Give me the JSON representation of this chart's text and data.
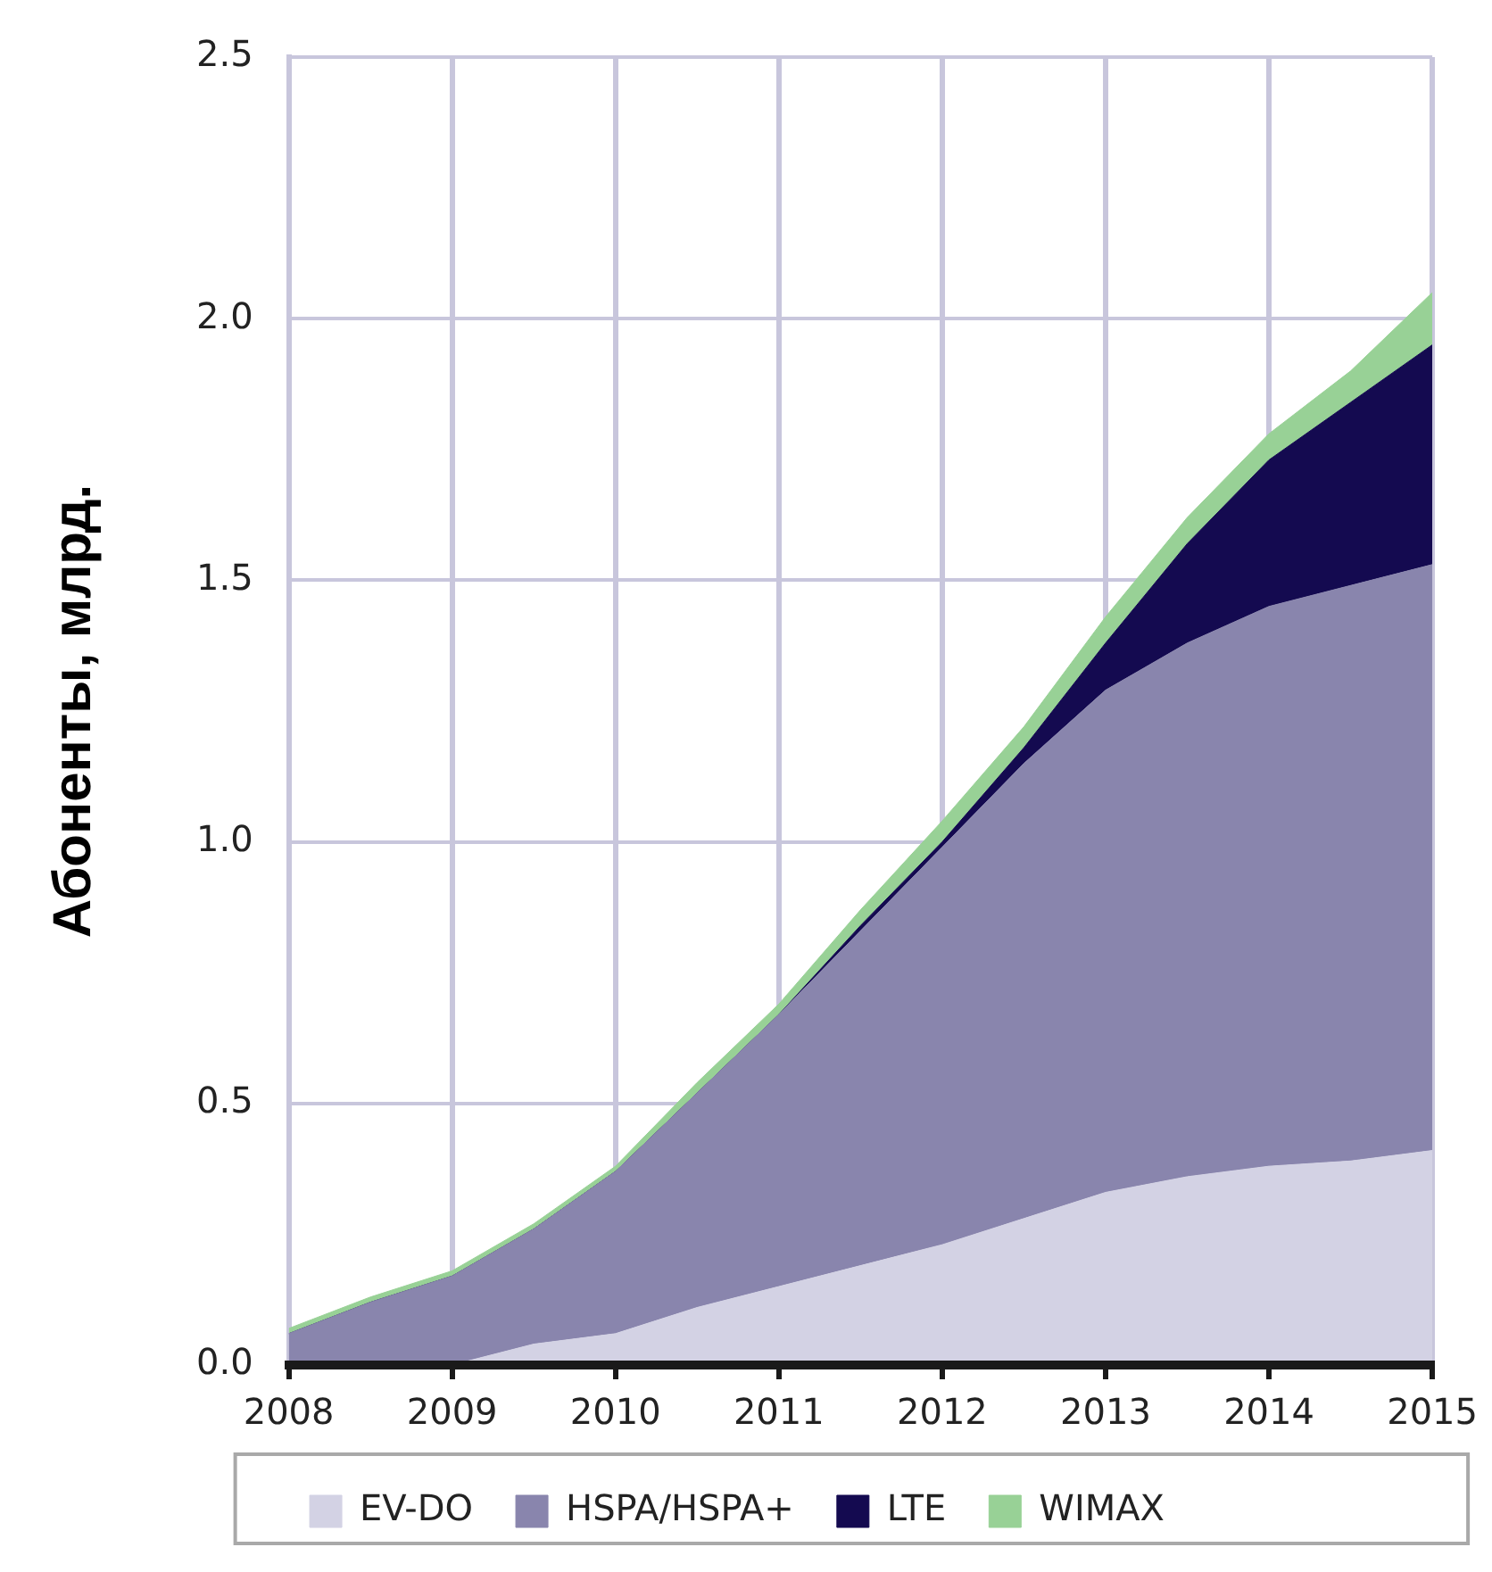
{
  "chart_data": {
    "type": "area",
    "stacked": true,
    "ylabel": "Абоненты, млрд.",
    "x": [
      2008,
      2008.5,
      2009,
      2009.5,
      2010,
      2010.5,
      2011,
      2011.5,
      2012,
      2012.5,
      2013,
      2013.5,
      2014,
      2014.5,
      2015
    ],
    "xlim": [
      2008,
      2015
    ],
    "xticks": [
      2008,
      2009,
      2010,
      2011,
      2012,
      2013,
      2014,
      2015
    ],
    "ylim": [
      0,
      2.5
    ],
    "yticks": [
      {
        "value": 0,
        "label": "0.0"
      },
      {
        "value": 0.5,
        "label": "0.5"
      },
      {
        "value": 1,
        "label": "1.0"
      },
      {
        "value": 1.5,
        "label": "1.5"
      },
      {
        "value": 2,
        "label": "2.0"
      },
      {
        "value": 2.5,
        "label": "2.5"
      }
    ],
    "grid": true,
    "legend": "bottom",
    "series": [
      {
        "name": "EV-DO",
        "color": "#d3d2e4",
        "values": [
          0,
          0,
          0,
          0.04,
          0.06,
          0.11,
          0.15,
          0.19,
          0.23,
          0.28,
          0.33,
          0.36,
          0.38,
          0.39,
          0.41
        ]
      },
      {
        "name": "HSPA/HSPA+",
        "color": "#8985ad",
        "values": [
          0.06,
          0.12,
          0.17,
          0.22,
          0.31,
          0.41,
          0.52,
          0.64,
          0.76,
          0.87,
          0.96,
          1.02,
          1.07,
          1.1,
          1.12
        ]
      },
      {
        "name": "LTE",
        "color": "#140a50",
        "values": [
          0,
          0,
          0,
          0,
          0,
          0,
          0,
          0.01,
          0.01,
          0.03,
          0.09,
          0.19,
          0.28,
          0.35,
          0.42
        ]
      },
      {
        "name": "WIMAX",
        "color": "#98d196",
        "values": [
          0.01,
          0.01,
          0.01,
          0.01,
          0.01,
          0.02,
          0.02,
          0.03,
          0.04,
          0.04,
          0.05,
          0.05,
          0.05,
          0.06,
          0.1
        ]
      }
    ]
  }
}
